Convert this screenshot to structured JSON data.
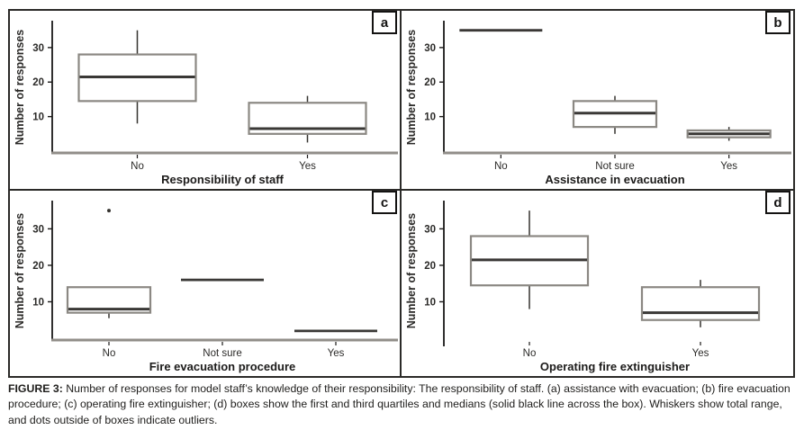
{
  "caption": {
    "label": "FIGURE 3:",
    "text": " Number of responses for model staff’s knowledge of their responsibility: The responsibility of staff. (a) assistance with evacuation; (b) fire evacuation procedure; (c) operating fire extinguisher; (d) boxes show the first and third quartiles and medians (solid black line across the box). Whiskers show total range, and dots outside of boxes indicate outliers."
  },
  "colors": {
    "box_stroke": "#8b8883",
    "median_line": "#3a3836",
    "whisker": "#35332f",
    "axis_baseline": "#918e89",
    "axis_line": "#1a1918",
    "text": "#2b2a28",
    "xlabel_text": "#1c1b1a"
  },
  "chart_data": [
    {
      "type": "box",
      "letter": "a",
      "xlabel": "Responsibility of staff",
      "ylabel": "Number of responses",
      "yticks": [
        10,
        20,
        30
      ],
      "ylim": [
        0,
        37
      ],
      "x_axis_line": true,
      "categories": [
        "No",
        "Yes"
      ],
      "boxes": [
        {
          "category": "No",
          "whisker_low": 8,
          "q1": 14.5,
          "median": 21.5,
          "q3": 28,
          "whisker_high": 35,
          "outliers": []
        },
        {
          "category": "Yes",
          "whisker_low": 2.5,
          "q1": 5,
          "median": 6.5,
          "q3": 14,
          "whisker_high": 16,
          "outliers": []
        }
      ]
    },
    {
      "type": "box",
      "letter": "b",
      "xlabel": "Assistance in evacuation",
      "ylabel": "Number of responses",
      "yticks": [
        10,
        20,
        30
      ],
      "ylim": [
        0,
        37
      ],
      "x_axis_line": true,
      "categories": [
        "No",
        "Not sure",
        "Yes"
      ],
      "boxes": [
        {
          "category": "No",
          "whisker_low": 35,
          "q1": 35,
          "median": 35,
          "q3": 35,
          "whisker_high": 35,
          "outliers": []
        },
        {
          "category": "Not sure",
          "whisker_low": 5,
          "q1": 7,
          "median": 11,
          "q3": 14.5,
          "whisker_high": 16,
          "outliers": []
        },
        {
          "category": "Yes",
          "whisker_low": 3,
          "q1": 4,
          "median": 5,
          "q3": 6,
          "whisker_high": 7,
          "outliers": []
        }
      ]
    },
    {
      "type": "box",
      "letter": "c",
      "xlabel": "Fire evacuation procedure",
      "ylabel": "Number of responses",
      "yticks": [
        10,
        20,
        30
      ],
      "ylim": [
        0,
        37
      ],
      "x_axis_line": true,
      "categories": [
        "No",
        "Not sure",
        "Yes"
      ],
      "boxes": [
        {
          "category": "No",
          "whisker_low": 5.5,
          "q1": 7,
          "median": 8,
          "q3": 14,
          "whisker_high": 14,
          "outliers": [
            35
          ]
        },
        {
          "category": "Not sure",
          "whisker_low": 16,
          "q1": 16,
          "median": 16,
          "q3": 16,
          "whisker_high": 16,
          "outliers": []
        },
        {
          "category": "Yes",
          "whisker_low": 2,
          "q1": 2,
          "median": 2,
          "q3": 2,
          "whisker_high": 2,
          "outliers": []
        }
      ]
    },
    {
      "type": "box",
      "letter": "d",
      "xlabel": "Operating fire extinguisher",
      "ylabel": "Number of responses",
      "yticks": [
        10,
        20,
        30
      ],
      "ylim": [
        0,
        37
      ],
      "x_axis_line": false,
      "categories": [
        "No",
        "Yes"
      ],
      "boxes": [
        {
          "category": "No",
          "whisker_low": 8,
          "q1": 14.5,
          "median": 21.5,
          "q3": 28,
          "whisker_high": 35,
          "outliers": []
        },
        {
          "category": "Yes",
          "whisker_low": 3,
          "q1": 5,
          "median": 7,
          "q3": 14,
          "whisker_high": 16,
          "outliers": []
        }
      ]
    }
  ]
}
